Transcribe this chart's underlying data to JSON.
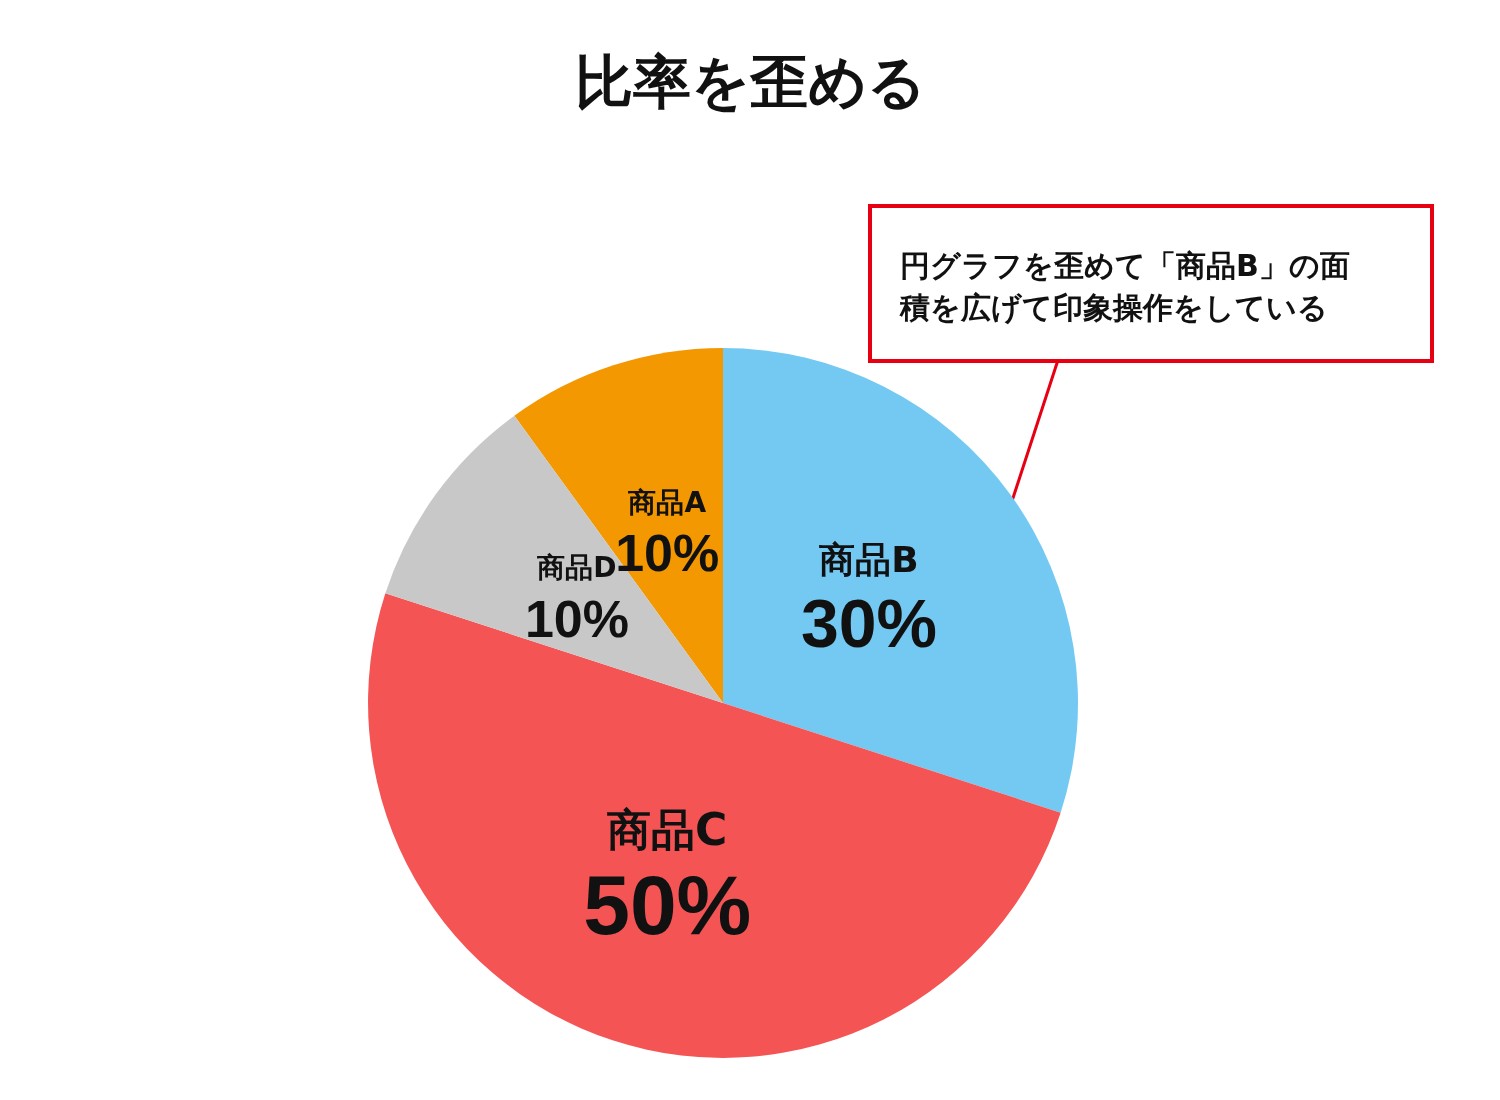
{
  "chart_data": {
    "type": "pie",
    "title": "比率を歪める",
    "categories": [
      "商品A",
      "商品B",
      "商品C",
      "商品D"
    ],
    "values": [
      10,
      30,
      50,
      10
    ],
    "colors": [
      "#f39800",
      "#74c9f3",
      "#f55454",
      "#c8c8c8"
    ],
    "value_labels": [
      "10%",
      "30%",
      "50%",
      "10%"
    ],
    "annotations": [
      "円グラフを歪めて「商品B」の面積を広げて印象操作をしている"
    ],
    "legend": false
  }
}
